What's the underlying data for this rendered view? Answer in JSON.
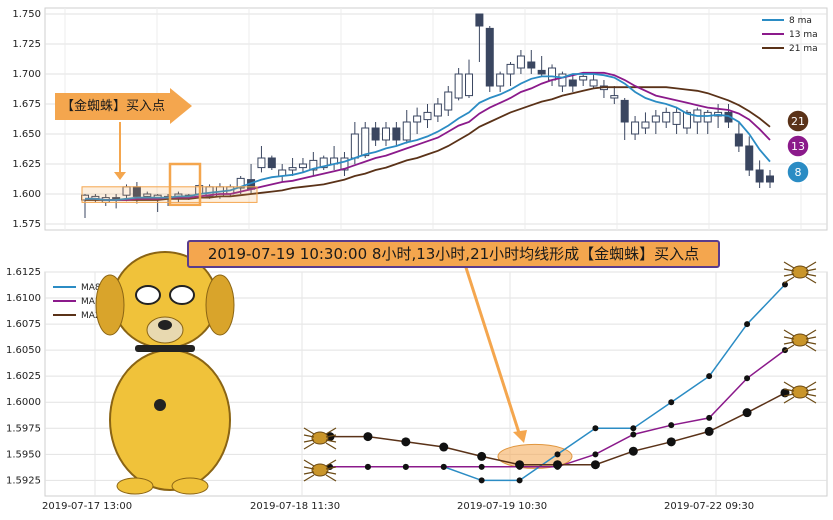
{
  "banner_text": "2019-07-19 10:30:00 8小时,13小时,21小时均线形成【金蜘蛛】买入点",
  "buy_label": "【金蜘蛛】买入点",
  "colors": {
    "ma8": "#2b8cc4",
    "ma13": "#8b1a8b",
    "ma21": "#5a3218",
    "candle_up": "#ffffff",
    "candle_down": "#3a4660",
    "highlight": "#f4a64e"
  },
  "chart_data": [
    {
      "type": "candlestick",
      "ylim": [
        1.57,
        1.755
      ],
      "yticks": [
        "1.575",
        "1.600",
        "1.625",
        "1.650",
        "1.675",
        "1.700",
        "1.725",
        "1.750"
      ],
      "legend": [
        "8 ma",
        "13 ma",
        "21 ma"
      ],
      "legend_position": "top-right",
      "end_badges": [
        "21",
        "13",
        "8"
      ],
      "grid": true,
      "candles": [
        [
          1.595,
          1.599,
          1.58,
          1.6
        ],
        [
          1.596,
          1.598,
          1.593,
          1.6
        ],
        [
          1.593,
          1.597,
          1.59,
          1.6
        ],
        [
          1.597,
          1.595,
          1.588,
          1.6
        ],
        [
          1.599,
          1.606,
          1.594,
          1.608
        ],
        [
          1.606,
          1.598,
          1.592,
          1.61
        ],
        [
          1.598,
          1.6,
          1.595,
          1.602
        ],
        [
          1.597,
          1.599,
          1.585,
          1.6
        ],
        [
          1.596,
          1.598,
          1.59,
          1.6
        ],
        [
          1.598,
          1.6,
          1.593,
          1.602
        ],
        [
          1.599,
          1.598,
          1.595,
          1.6
        ],
        [
          1.6,
          1.607,
          1.598,
          1.608
        ],
        [
          1.598,
          1.606,
          1.596,
          1.608
        ],
        [
          1.598,
          1.606,
          1.596,
          1.609
        ],
        [
          1.6,
          1.606,
          1.598,
          1.608
        ],
        [
          1.605,
          1.613,
          1.6,
          1.615
        ],
        [
          1.612,
          1.604,
          1.6,
          1.625
        ],
        [
          1.622,
          1.63,
          1.618,
          1.64
        ],
        [
          1.63,
          1.622,
          1.62,
          1.632
        ],
        [
          1.615,
          1.62,
          1.61,
          1.625
        ],
        [
          1.62,
          1.622,
          1.615,
          1.63
        ],
        [
          1.622,
          1.625,
          1.618,
          1.63
        ],
        [
          1.62,
          1.628,
          1.615,
          1.635
        ],
        [
          1.622,
          1.63,
          1.62,
          1.632
        ],
        [
          1.625,
          1.63,
          1.62,
          1.64
        ],
        [
          1.62,
          1.63,
          1.615,
          1.635
        ],
        [
          1.63,
          1.65,
          1.625,
          1.66
        ],
        [
          1.632,
          1.655,
          1.63,
          1.66
        ],
        [
          1.655,
          1.645,
          1.64,
          1.66
        ],
        [
          1.645,
          1.655,
          1.64,
          1.66
        ],
        [
          1.655,
          1.645,
          1.64,
          1.66
        ],
        [
          1.645,
          1.66,
          1.642,
          1.67
        ],
        [
          1.66,
          1.665,
          1.65,
          1.672
        ],
        [
          1.662,
          1.668,
          1.655,
          1.675
        ],
        [
          1.665,
          1.675,
          1.66,
          1.68
        ],
        [
          1.67,
          1.685,
          1.665,
          1.69
        ],
        [
          1.68,
          1.7,
          1.678,
          1.705
        ],
        [
          1.682,
          1.7,
          1.68,
          1.712
        ],
        [
          1.75,
          1.74,
          1.71,
          1.75
        ],
        [
          1.738,
          1.69,
          1.685,
          1.74
        ],
        [
          1.69,
          1.7,
          1.685,
          1.702
        ],
        [
          1.7,
          1.708,
          1.69,
          1.71
        ],
        [
          1.705,
          1.715,
          1.7,
          1.72
        ],
        [
          1.71,
          1.705,
          1.7,
          1.72
        ],
        [
          1.703,
          1.7,
          1.698,
          1.715
        ],
        [
          1.695,
          1.705,
          1.69,
          1.708
        ],
        [
          1.69,
          1.7,
          1.685,
          1.702
        ],
        [
          1.695,
          1.69,
          1.685,
          1.7
        ],
        [
          1.695,
          1.698,
          1.69,
          1.7
        ],
        [
          1.69,
          1.695,
          1.688,
          1.7
        ],
        [
          1.687,
          1.69,
          1.68,
          1.695
        ],
        [
          1.68,
          1.682,
          1.675,
          1.69
        ],
        [
          1.678,
          1.66,
          1.645,
          1.68
        ],
        [
          1.65,
          1.66,
          1.645,
          1.665
        ],
        [
          1.655,
          1.66,
          1.65,
          1.668
        ],
        [
          1.66,
          1.665,
          1.65,
          1.67
        ],
        [
          1.66,
          1.668,
          1.655,
          1.672
        ],
        [
          1.658,
          1.668,
          1.65,
          1.672
        ],
        [
          1.655,
          1.668,
          1.65,
          1.67
        ],
        [
          1.66,
          1.67,
          1.65,
          1.672
        ],
        [
          1.66,
          1.668,
          1.65,
          1.67
        ],
        [
          1.665,
          1.668,
          1.655,
          1.675
        ],
        [
          1.668,
          1.66,
          1.655,
          1.675
        ],
        [
          1.65,
          1.64,
          1.635,
          1.66
        ],
        [
          1.64,
          1.62,
          1.615,
          1.648
        ],
        [
          1.62,
          1.61,
          1.605,
          1.628
        ],
        [
          1.615,
          1.61,
          1.605,
          1.62
        ]
      ],
      "ma8": [
        1.596,
        1.596,
        1.595,
        1.595,
        1.596,
        1.597,
        1.597,
        1.597,
        1.597,
        1.598,
        1.598,
        1.6,
        1.601,
        1.602,
        1.603,
        1.606,
        1.609,
        1.612,
        1.614,
        1.615,
        1.616,
        1.618,
        1.621,
        1.623,
        1.625,
        1.627,
        1.63,
        1.633,
        1.635,
        1.638,
        1.64,
        1.643,
        1.645,
        1.648,
        1.652,
        1.657,
        1.663,
        1.668,
        1.676,
        1.68,
        1.683,
        1.687,
        1.692,
        1.696,
        1.698,
        1.698,
        1.697,
        1.7,
        1.7,
        1.7,
        1.699,
        1.697,
        1.692,
        1.685,
        1.68,
        1.677,
        1.675,
        1.672,
        1.667,
        1.665,
        1.665,
        1.666,
        1.665,
        1.66,
        1.65,
        1.637,
        1.627
      ],
      "ma13": [
        1.596,
        1.596,
        1.595,
        1.595,
        1.595,
        1.596,
        1.596,
        1.596,
        1.597,
        1.597,
        1.597,
        1.598,
        1.599,
        1.6,
        1.6,
        1.602,
        1.604,
        1.606,
        1.608,
        1.61,
        1.611,
        1.613,
        1.615,
        1.617,
        1.619,
        1.621,
        1.624,
        1.627,
        1.63,
        1.632,
        1.635,
        1.638,
        1.641,
        1.644,
        1.647,
        1.652,
        1.657,
        1.66,
        1.667,
        1.672,
        1.676,
        1.68,
        1.685,
        1.688,
        1.692,
        1.695,
        1.697,
        1.699,
        1.701,
        1.701,
        1.701,
        1.699,
        1.695,
        1.69,
        1.686,
        1.682,
        1.68,
        1.678,
        1.676,
        1.674,
        1.672,
        1.671,
        1.67,
        1.667,
        1.662,
        1.654,
        1.645
      ],
      "ma21": [
        1.595,
        1.595,
        1.595,
        1.595,
        1.595,
        1.595,
        1.595,
        1.595,
        1.596,
        1.596,
        1.596,
        1.597,
        1.597,
        1.598,
        1.598,
        1.599,
        1.6,
        1.601,
        1.602,
        1.603,
        1.605,
        1.606,
        1.607,
        1.608,
        1.61,
        1.612,
        1.615,
        1.617,
        1.62,
        1.622,
        1.625,
        1.628,
        1.63,
        1.633,
        1.636,
        1.64,
        1.645,
        1.65,
        1.656,
        1.66,
        1.664,
        1.668,
        1.671,
        1.674,
        1.677,
        1.679,
        1.682,
        1.684,
        1.686,
        1.688,
        1.689,
        1.689,
        1.689,
        1.689,
        1.689,
        1.689,
        1.689,
        1.688,
        1.687,
        1.686,
        1.684,
        1.681,
        1.678,
        1.674,
        1.669,
        1.663,
        1.656
      ]
    },
    {
      "type": "line",
      "ylim": [
        1.591,
        1.6125
      ],
      "yticks": [
        "1.5925",
        "1.5950",
        "1.5975",
        "1.6000",
        "1.6025",
        "1.6050",
        "1.6075",
        "1.6100",
        "1.6125"
      ],
      "xtick_labels": [
        "2019-07-17 13:00",
        "2019-07-18 11:30",
        "2019-07-19 10:30",
        "2019-07-22 09:30"
      ],
      "legend": [
        "MA8",
        "MA13",
        "MA21"
      ],
      "legend_position": "top-left",
      "grid": true,
      "series": [
        {
          "name": "MA8",
          "values": [
            1.5938,
            1.5938,
            1.5938,
            1.5938,
            1.5925,
            1.5925,
            1.595,
            1.5975,
            1.5975,
            1.6,
            1.6025,
            1.6075,
            1.6113
          ]
        },
        {
          "name": "MA13",
          "values": [
            1.5938,
            1.5938,
            1.5938,
            1.5938,
            1.5938,
            1.5938,
            1.5938,
            1.595,
            1.5969,
            1.5978,
            1.5985,
            1.6023,
            1.605
          ]
        },
        {
          "name": "MA21",
          "values": [
            1.5967,
            1.5967,
            1.5962,
            1.5957,
            1.5948,
            1.594,
            1.594,
            1.594,
            1.5953,
            1.5962,
            1.5972,
            1.599,
            1.6009
          ]
        }
      ]
    }
  ]
}
